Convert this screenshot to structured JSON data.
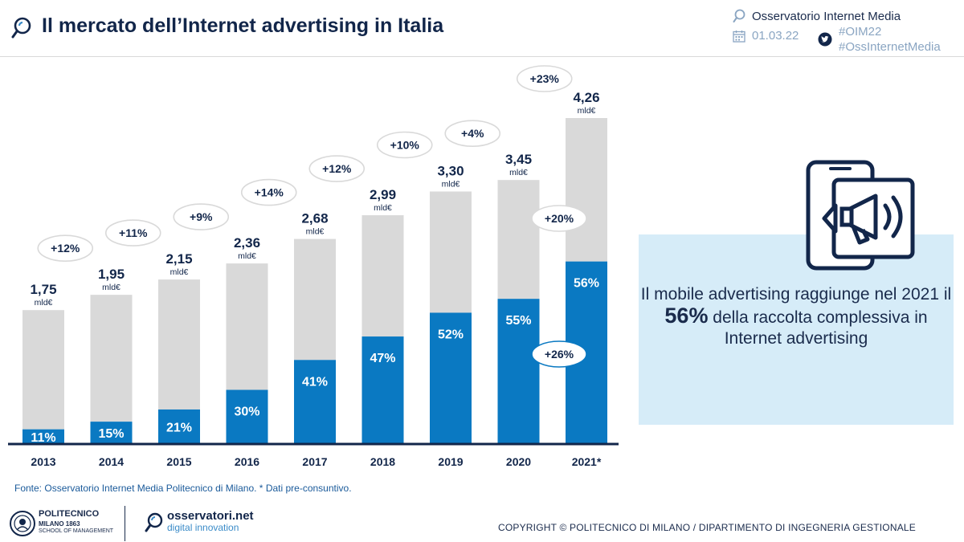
{
  "header": {
    "title": "Il mercato dell’Internet advertising in Italia",
    "observatory": "Osservatorio Internet Media",
    "date": "01.03.22",
    "hashtag1": "#OIM22",
    "hashtag2": "#OssInternetMedia"
  },
  "chart_data": {
    "type": "bar",
    "title": "Il mercato dell’Internet advertising in Italia",
    "unit": "mld€",
    "categories": [
      "2013",
      "2014",
      "2015",
      "2016",
      "2017",
      "2018",
      "2019",
      "2020",
      "2021*"
    ],
    "totals": [
      1.75,
      1.95,
      2.15,
      2.36,
      2.68,
      2.99,
      3.3,
      3.45,
      4.26
    ],
    "total_labels": [
      "1,75",
      "1,95",
      "2,15",
      "2,36",
      "2,68",
      "2,99",
      "3,30",
      "3,45",
      "4,26"
    ],
    "mobile_share_pct": [
      11,
      15,
      21,
      30,
      41,
      47,
      52,
      55,
      56
    ],
    "mobile_share_labels": [
      "11%",
      "15%",
      "21%",
      "30%",
      "41%",
      "47%",
      "52%",
      "55%",
      "56%"
    ],
    "growth_labels": [
      "+12%",
      "+11%",
      "+9%",
      "+14%",
      "+12%",
      "+10%",
      "+4%",
      "+23%"
    ],
    "growth_2021_other": "+20%",
    "growth_2021_mobile": "+26%",
    "ylim": [
      0,
      4.26
    ],
    "colors": {
      "mobile": "#0a79c2",
      "other": "#d9d9d9",
      "axis": "#12264a"
    }
  },
  "infobox": {
    "text_before": "Il mobile advertising raggiunge nel 2021 il ",
    "highlight": "56%",
    "text_after": " della raccolta complessiva in Internet advertising"
  },
  "footer": {
    "source": "Fonte: Osservatorio Internet Media Politecnico di Milano. * Dati pre-consuntivo.",
    "polimi_name": "POLITECNICO",
    "polimi_sub1": "MILANO 1863",
    "polimi_sub2": "SCHOOL OF MANAGEMENT",
    "osservatori_name": "osservatori.net",
    "osservatori_sub": "digital innovation",
    "copyright": "COPYRIGHT © POLITECNICO DI MILANO / DIPARTIMENTO DI INGEGNERIA GESTIONALE"
  }
}
